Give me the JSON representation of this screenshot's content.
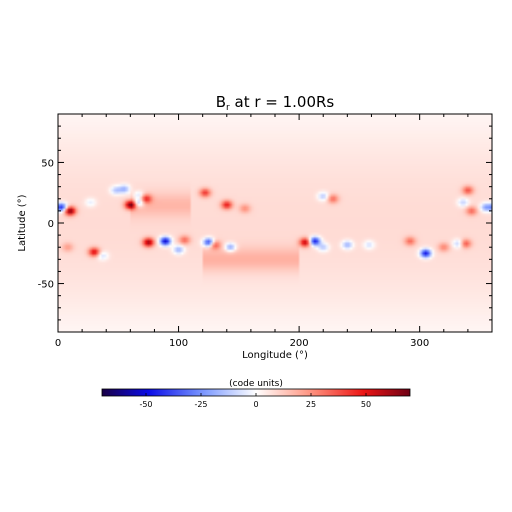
{
  "chart_data": [
    {
      "type": "heatmap",
      "title": "B",
      "title_sub": "r",
      "title_rest": " at r = 1.00Rs",
      "xlabel": "Longitude (°)",
      "ylabel": "Latitude (°)",
      "xlim": [
        0,
        360
      ],
      "ylim": [
        -90,
        90
      ],
      "x_ticks": [
        0,
        100,
        200,
        300
      ],
      "y_ticks": [
        -50,
        0,
        50
      ],
      "x_tick_labels": [
        "0",
        "100",
        "200",
        "300"
      ],
      "y_tick_labels": [
        "-50",
        "0",
        "50"
      ],
      "grid": false,
      "colormap": "blue-white-red",
      "background_field": 7,
      "features": [
        {
          "lon": 3,
          "lat": 13,
          "value": -50
        },
        {
          "lon": 10,
          "lat": 10,
          "value": 60
        },
        {
          "lon": 27,
          "lat": 17,
          "value": -12
        },
        {
          "lon": 48,
          "lat": 27,
          "value": -20
        },
        {
          "lon": 55,
          "lat": 28,
          "value": -25
        },
        {
          "lon": 60,
          "lat": 15,
          "value": 60
        },
        {
          "lon": 67,
          "lat": 17,
          "value": -30
        },
        {
          "lon": 73,
          "lat": 20,
          "value": 35
        },
        {
          "lon": 67,
          "lat": 23,
          "value": -18
        },
        {
          "lon": 122,
          "lat": 25,
          "value": 35
        },
        {
          "lon": 140,
          "lat": 15,
          "value": 40
        },
        {
          "lon": 155,
          "lat": 12,
          "value": 18
        },
        {
          "lon": 8,
          "lat": -20,
          "value": 15
        },
        {
          "lon": 30,
          "lat": -24,
          "value": 45
        },
        {
          "lon": 37,
          "lat": -27,
          "value": -15
        },
        {
          "lon": 75,
          "lat": -16,
          "value": 55
        },
        {
          "lon": 89,
          "lat": -15,
          "value": -60
        },
        {
          "lon": 100,
          "lat": -22,
          "value": -25
        },
        {
          "lon": 105,
          "lat": -14,
          "value": 25
        },
        {
          "lon": 125,
          "lat": -16,
          "value": -50
        },
        {
          "lon": 130,
          "lat": -18,
          "value": 30
        },
        {
          "lon": 143,
          "lat": -20,
          "value": -30
        },
        {
          "lon": 205,
          "lat": -16,
          "value": 50
        },
        {
          "lon": 213,
          "lat": -15,
          "value": -55
        },
        {
          "lon": 220,
          "lat": -20,
          "value": -20
        },
        {
          "lon": 240,
          "lat": -18,
          "value": -25
        },
        {
          "lon": 258,
          "lat": -18,
          "value": -15
        },
        {
          "lon": 292,
          "lat": -15,
          "value": 25
        },
        {
          "lon": 305,
          "lat": -25,
          "value": -55
        },
        {
          "lon": 320,
          "lat": -20,
          "value": 20
        },
        {
          "lon": 338,
          "lat": -17,
          "value": 30
        },
        {
          "lon": 332,
          "lat": -17,
          "value": -20
        },
        {
          "lon": 220,
          "lat": 22,
          "value": -20
        },
        {
          "lon": 228,
          "lat": 20,
          "value": 25
        },
        {
          "lon": 336,
          "lat": 17,
          "value": -18
        },
        {
          "lon": 340,
          "lat": 27,
          "value": 30
        },
        {
          "lon": 343,
          "lat": 10,
          "value": 25
        },
        {
          "lon": 355,
          "lat": 13,
          "value": -30
        }
      ],
      "dark_bands": [
        {
          "lon_from": 120,
          "lon_to": 200,
          "lat": -30,
          "value": 18
        },
        {
          "lon_from": 60,
          "lon_to": 110,
          "lat": 15,
          "value": 15
        }
      ]
    },
    {
      "type": "colorbar",
      "title": "(code units)",
      "range": [
        -70,
        70
      ],
      "tick_values": [
        -50,
        -25,
        0,
        25,
        50
      ],
      "tick_labels": [
        "-50",
        "-25",
        "0",
        "25",
        "50"
      ]
    }
  ]
}
